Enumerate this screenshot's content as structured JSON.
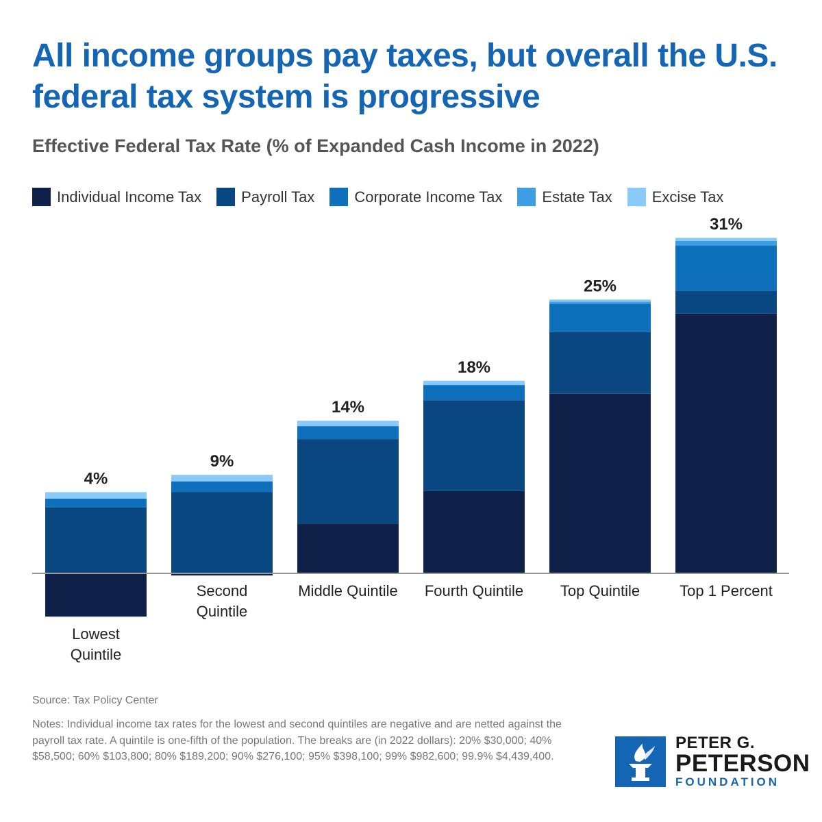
{
  "header": {
    "title": "All income groups pay taxes, but overall the U.S. federal tax system is progressive",
    "subtitle": "Effective Federal Tax Rate (% of Expanded Cash Income in 2022)"
  },
  "legend": [
    {
      "label": "Individual Income Tax",
      "color": "#0f2148"
    },
    {
      "label": "Payroll Tax",
      "color": "#0a4780"
    },
    {
      "label": "Corporate Income Tax",
      "color": "#0e6fbb"
    },
    {
      "label": "Estate Tax",
      "color": "#3d9fe3"
    },
    {
      "label": "Excise Tax",
      "color": "#8acaf8"
    }
  ],
  "chart_data": {
    "type": "bar",
    "stacked": true,
    "title": "Effective Federal Tax Rate (% of Expanded Cash Income in 2022)",
    "xlabel": "",
    "ylabel": "",
    "categories": [
      "Lowest Quintile",
      "Second Quintile",
      "Middle Quintile",
      "Fourth Quintile",
      "Top Quintile",
      "Top 1 Percent"
    ],
    "category_label_lines": [
      [
        "Lowest",
        "Quintile"
      ],
      [
        "Second",
        "Quintile"
      ],
      [
        "Middle Quintile"
      ],
      [
        "Fourth Quintile"
      ],
      [
        "Top Quintile"
      ],
      [
        "Top 1 Percent"
      ]
    ],
    "totals": [
      "4%",
      "9%",
      "14%",
      "18%",
      "25%",
      "31%"
    ],
    "series": [
      {
        "name": "Individual Income Tax",
        "color": "#0f2148",
        "values": [
          -4.0,
          -0.2,
          4.6,
          7.6,
          16.6,
          24.0
        ]
      },
      {
        "name": "Payroll Tax",
        "color": "#0a4780",
        "values": [
          6.1,
          7.5,
          7.8,
          8.4,
          5.7,
          2.1
        ]
      },
      {
        "name": "Corporate Income Tax",
        "color": "#0e6fbb",
        "values": [
          0.8,
          1.0,
          1.2,
          1.4,
          2.6,
          4.2
        ]
      },
      {
        "name": "Estate Tax",
        "color": "#3d9fe3",
        "values": [
          0.0,
          0.0,
          0.0,
          0.0,
          0.2,
          0.4
        ]
      },
      {
        "name": "Excise Tax",
        "color": "#8acaf8",
        "values": [
          0.6,
          0.6,
          0.5,
          0.4,
          0.2,
          0.3
        ]
      }
    ],
    "ylim": [
      -4.5,
      31.5
    ],
    "grid": false,
    "legend_position": "top-left"
  },
  "footer": {
    "source": "Source: Tax Policy Center",
    "notes": "Notes: Individual income tax rates for the lowest and second quintiles are negative and are netted against the payroll tax rate. A quintile is one-fifth of the population. The breaks are (in 2022 dollars): 20% $30,000; 40% $58,500; 60% $103,800; 80% $189,200; 90% $276,100; 95% $398,100; 99% $982,600; 99.9% $4,439,400."
  },
  "logo": {
    "line1": "PETER G.",
    "line2": "PETERSON",
    "line3": "FOUNDATION",
    "color": "#1565b5"
  }
}
